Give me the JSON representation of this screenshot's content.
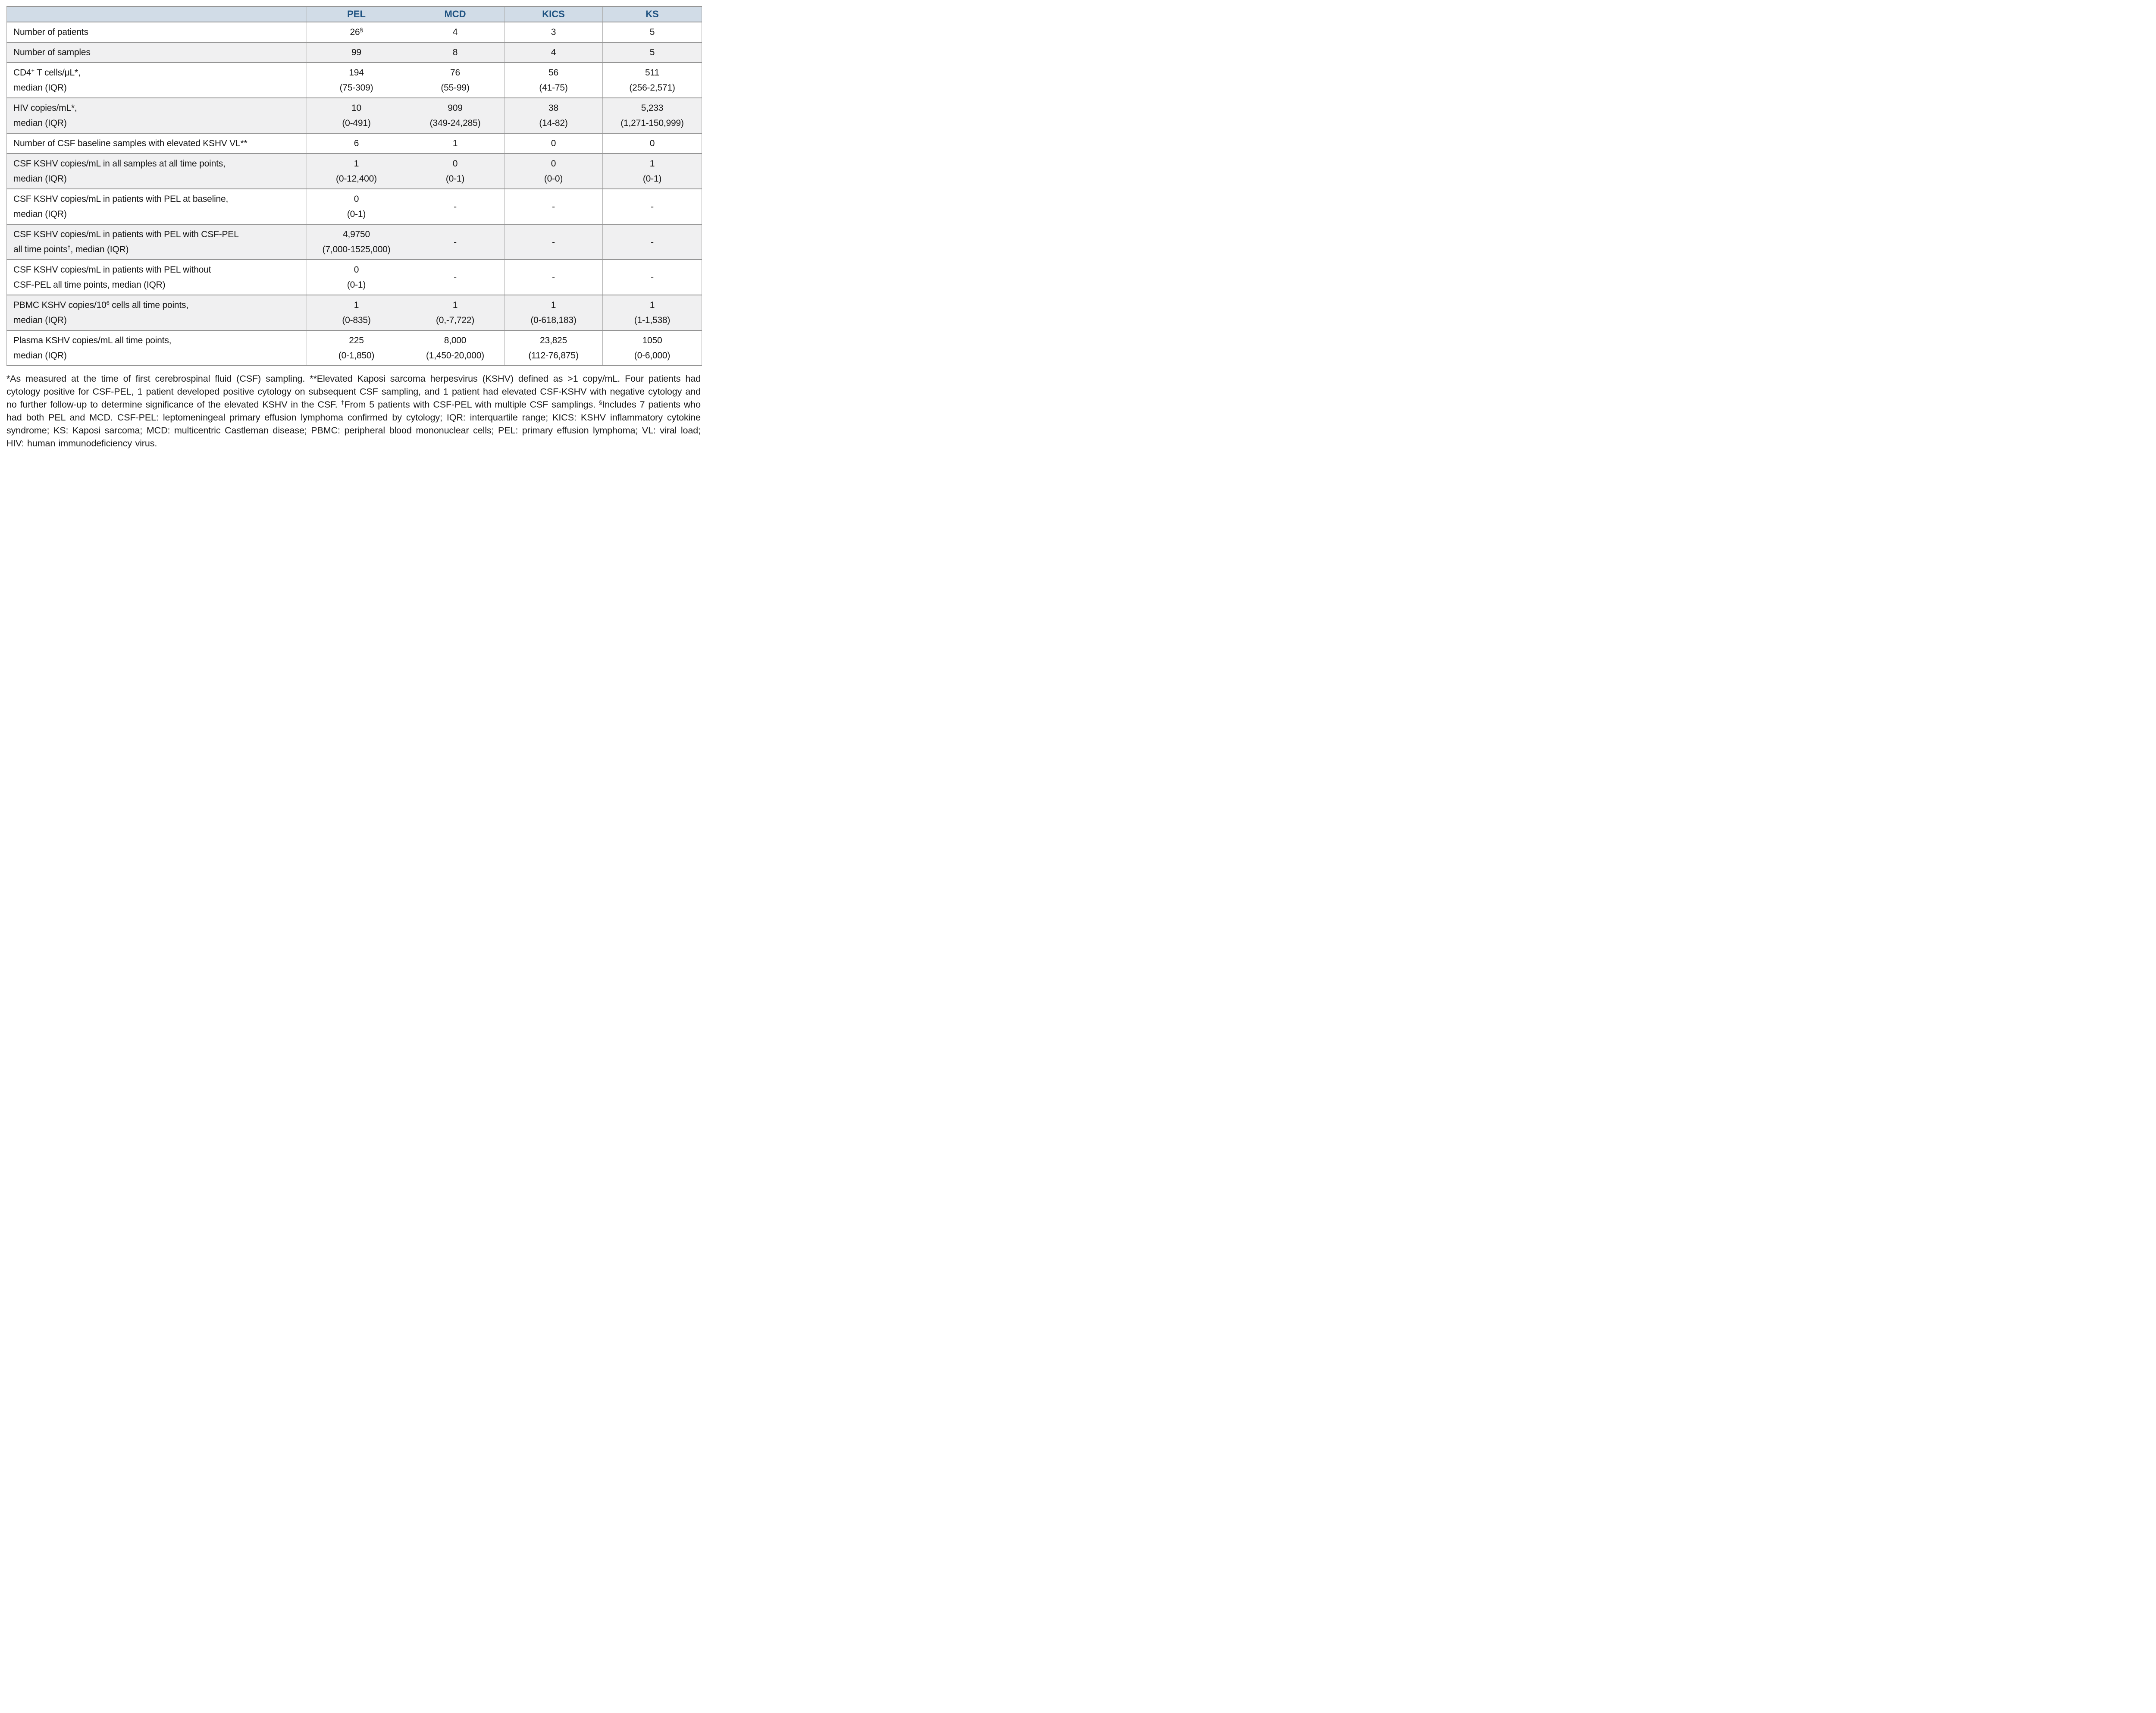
{
  "header": {
    "columns": [
      "PEL",
      "MCD",
      "KICS",
      "KS"
    ]
  },
  "table": {
    "rows": [
      {
        "label": "Number of patients",
        "values": [
          "26^{§}",
          "4",
          "3",
          "5"
        ]
      },
      {
        "label": "Number of samples",
        "values": [
          "99",
          "8",
          "4",
          "5"
        ]
      },
      {
        "label": "CD4^{+} T cells/μL*,\nmedian (IQR)",
        "values": [
          "194\n(75-309)",
          "76\n(55-99)",
          "56\n(41-75)",
          "511\n(256-2,571)"
        ]
      },
      {
        "label": "HIV copies/mL*,\nmedian (IQR)",
        "values": [
          "10\n(0-491)",
          "909\n(349-24,285)",
          "38\n(14-82)",
          "5,233\n(1,271-150,999)"
        ]
      },
      {
        "label": "Number of CSF baseline samples with elevated KSHV VL**",
        "values": [
          "6",
          "1",
          "0",
          "0"
        ]
      },
      {
        "label": "CSF KSHV copies/mL in all samples at all time points,\nmedian (IQR)",
        "values": [
          "1\n(0-12,400)",
          "0\n(0-1)",
          "0\n(0-0)",
          "1\n(0-1)"
        ]
      },
      {
        "label": "CSF KSHV copies/mL in patients with PEL at baseline,\nmedian (IQR)",
        "values": [
          "0\n(0-1)",
          "-",
          "-",
          "-"
        ]
      },
      {
        "label": "CSF KSHV copies/mL in patients with PEL with CSF-PEL\nall time points^{†}, median (IQR)",
        "values": [
          "4,9750\n(7,000-1525,000)",
          "-",
          "-",
          "-"
        ]
      },
      {
        "label": "CSF KSHV copies/mL in patients with PEL without\nCSF-PEL all time points, median (IQR)",
        "values": [
          "0\n(0-1)",
          "-",
          "-",
          "-"
        ]
      },
      {
        "label": "PBMC KSHV copies/10^{6} cells all time points,\nmedian (IQR)",
        "values": [
          "1\n(0-835)",
          "1\n(0,-7,722)",
          "1\n(0-618,183)",
          "1\n(1-1,538)"
        ]
      },
      {
        "label": "Plasma KSHV copies/mL all time points,\nmedian (IQR)",
        "values": [
          "225\n(0-1,850)",
          "8,000\n(1,450-20,000)",
          "23,825\n(112-76,875)",
          "1050\n(0-6,000)"
        ]
      }
    ]
  },
  "footnote": "*As measured at the time of first cerebrospinal fluid (CSF) sampling. **Elevated Kaposi sarcoma herpesvirus (KSHV) defined as >1 copy/mL. Four patients had cytology positive for CSF-PEL, 1 patient developed positive cytology on subsequent CSF sampling, and 1 patient had elevated CSF-KSHV with negative cytology and no further follow-up to determine significance of the elevated KSHV in the CSF. ^{†}From 5 patients with CSF-PEL with multiple CSF samplings. ^{§}Includes 7 patients who had both PEL and MCD. CSF-PEL: leptomeningeal primary effusion lymphoma confirmed by cytology; IQR: interquartile range; KICS: KSHV inflammatory cytokine syndrome; KS: Kaposi sarcoma; MCD: multicentric Castleman disease; PBMC: peripheral blood mononuclear cells; PEL: primary effusion lymphoma; VL: viral load; HIV:  human immunodeficiency virus."
}
